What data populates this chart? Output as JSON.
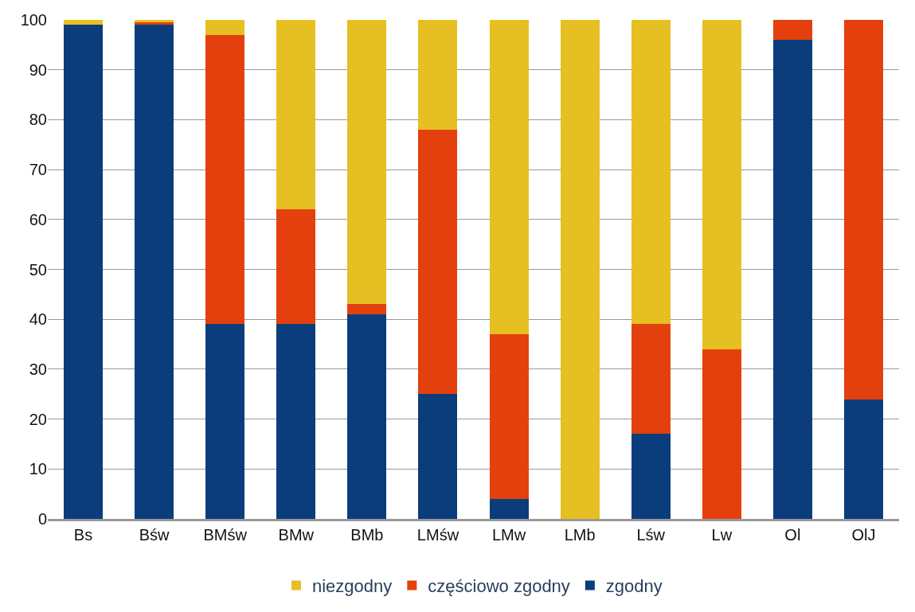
{
  "chart_data": {
    "type": "bar",
    "stacked": true,
    "categories": [
      "Bs",
      "Bśw",
      "BMśw",
      "BMw",
      "BMb",
      "LMśw",
      "LMw",
      "LMb",
      "Lśw",
      "Lw",
      "Ol",
      "OlJ"
    ],
    "series": [
      {
        "name": "zgodny",
        "color": "#0b3d7c",
        "values": [
          99,
          99,
          39,
          39,
          41,
          25,
          4,
          0,
          17,
          0,
          96,
          24
        ]
      },
      {
        "name": "częściowo zgodny",
        "color": "#e4400e",
        "values": [
          0,
          0.5,
          58,
          23,
          2,
          53,
          33,
          0,
          22,
          34,
          4,
          76
        ]
      },
      {
        "name": "niezgodny",
        "color": "#e6bf22",
        "values": [
          1,
          0.5,
          3,
          38,
          57,
          22,
          63,
          100,
          61,
          66,
          0,
          0
        ]
      }
    ],
    "ylim": [
      0,
      100
    ],
    "yticks": [
      0,
      10,
      20,
      30,
      40,
      50,
      60,
      70,
      80,
      90,
      100
    ],
    "grid": "y",
    "legend": "bottom"
  }
}
